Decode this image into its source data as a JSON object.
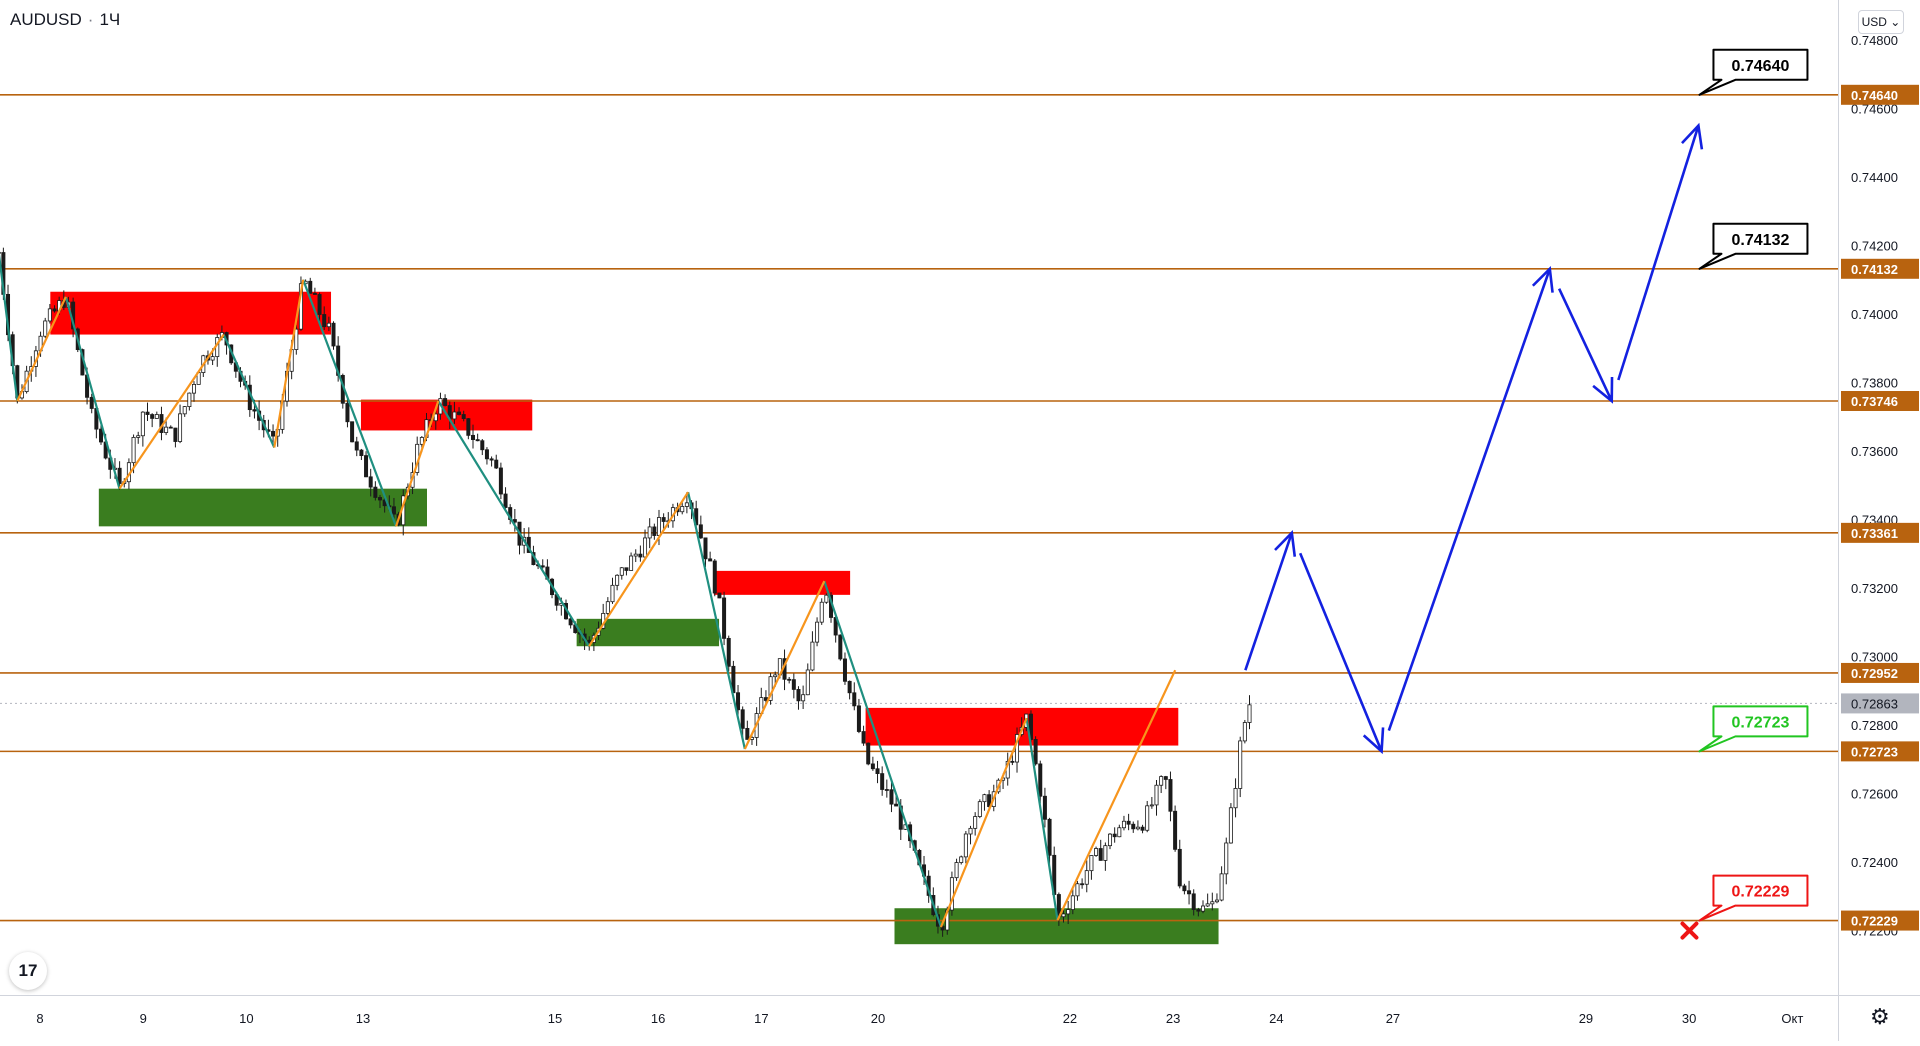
{
  "header": {
    "symbol": "AUDUSD",
    "interval": "1Ч",
    "dot": "·"
  },
  "currency_button": {
    "label": "USD ⌄"
  },
  "logo": {
    "text": "17"
  },
  "settings_icon": "gear-icon",
  "colors": {
    "level_line": "#b8630f",
    "level_label_bg": "#b8630f",
    "zone_red": "#ff0000",
    "zone_green": "#3a7d1f",
    "zigzag_down": "#1f8f80",
    "zigzag_up": "#f7951d",
    "forecast": "#1321e0",
    "candle": "#1b1b1b",
    "current_price_bg": "#b2b5be",
    "callout_green": "#21c521",
    "callout_red": "#ee1515"
  },
  "chart_data": {
    "type": "candlestick",
    "title": "AUDUSD",
    "interval": "1Ч",
    "y_axis": {
      "range": [
        0.72,
        0.7485
      ],
      "ticks": [
        "0.74800",
        "0.74600",
        "0.74400",
        "0.74200",
        "0.74000",
        "0.73800",
        "0.73600",
        "0.73400",
        "0.73200",
        "0.73000",
        "0.72800",
        "0.72600",
        "0.72400",
        "0.72200"
      ]
    },
    "x_axis": {
      "ticks": [
        {
          "label": "8",
          "t": 0.4
        },
        {
          "label": "9",
          "t": 1.4
        },
        {
          "label": "10",
          "t": 2.4
        },
        {
          "label": "13",
          "t": 3.53
        },
        {
          "label": "15",
          "t": 5.39
        },
        {
          "label": "16",
          "t": 6.39
        },
        {
          "label": "17",
          "t": 7.39
        },
        {
          "label": "20",
          "t": 8.52
        },
        {
          "label": "22",
          "t": 10.38
        },
        {
          "label": "23",
          "t": 11.38
        },
        {
          "label": "24",
          "t": 12.38
        },
        {
          "label": "27",
          "t": 13.51
        },
        {
          "label": "29",
          "t": 15.38
        },
        {
          "label": "30",
          "t": 16.38
        },
        {
          "label": "Окт",
          "t": 17.38
        }
      ]
    },
    "levels": [
      {
        "value": 0.7464,
        "label": "0.74640",
        "callout": "0.74640",
        "callout_style": "black"
      },
      {
        "value": 0.74132,
        "label": "0.74132",
        "callout": "0.74132",
        "callout_style": "black"
      },
      {
        "value": 0.73746,
        "label": "0.73746"
      },
      {
        "value": 0.73361,
        "label": "0.73361"
      },
      {
        "value": 0.72952,
        "label": "0.72952"
      },
      {
        "value": 0.72723,
        "label": "0.72723",
        "callout": "0.72723",
        "callout_style": "green"
      },
      {
        "value": 0.72229,
        "label": "0.72229",
        "callout": "0.72229",
        "callout_style": "red"
      }
    ],
    "current_price": {
      "value": 0.72863,
      "label": "0.72863"
    },
    "zones": [
      {
        "kind": "supply",
        "t_from": 0.5,
        "t_to": 3.22,
        "y_from": 0.7394,
        "y_to": 0.74065
      },
      {
        "kind": "demand",
        "t_from": 0.97,
        "t_to": 4.15,
        "y_from": 0.7338,
        "y_to": 0.7349
      },
      {
        "kind": "supply",
        "t_from": 3.51,
        "t_to": 5.17,
        "y_from": 0.7366,
        "y_to": 0.7375
      },
      {
        "kind": "demand",
        "t_from": 5.6,
        "t_to": 6.98,
        "y_from": 0.7303,
        "y_to": 0.7311
      },
      {
        "kind": "supply",
        "t_from": 6.93,
        "t_to": 8.25,
        "y_from": 0.7318,
        "y_to": 0.7325
      },
      {
        "kind": "supply",
        "t_from": 8.4,
        "t_to": 11.43,
        "y_from": 0.7274,
        "y_to": 0.7285
      },
      {
        "kind": "demand",
        "t_from": 8.68,
        "t_to": 11.82,
        "y_from": 0.7216,
        "y_to": 0.72265
      }
    ],
    "zigzag_down": [
      [
        [
          0.0,
          0.7418
        ],
        [
          0.18,
          0.73746
        ]
      ],
      [
        [
          0.65,
          0.7405
        ],
        [
          1.17,
          0.7349
        ]
      ],
      [
        [
          2.18,
          0.7394
        ],
        [
          2.67,
          0.7361
        ]
      ],
      [
        [
          2.95,
          0.741
        ],
        [
          3.85,
          0.7338
        ]
      ],
      [
        [
          4.26,
          0.73746
        ],
        [
          5.72,
          0.7303
        ]
      ],
      [
        [
          6.68,
          0.7348
        ],
        [
          7.23,
          0.7273
        ]
      ],
      [
        [
          8.0,
          0.7322
        ],
        [
          9.13,
          0.7221
        ]
      ],
      [
        [
          9.96,
          0.7282
        ],
        [
          10.26,
          0.7223
        ]
      ]
    ],
    "zigzag_up": [
      [
        [
          0.18,
          0.73746
        ],
        [
          0.65,
          0.7405
        ]
      ],
      [
        [
          1.17,
          0.7349
        ],
        [
          2.18,
          0.7394
        ]
      ],
      [
        [
          2.67,
          0.7361
        ],
        [
          2.95,
          0.741
        ]
      ],
      [
        [
          3.85,
          0.7338
        ],
        [
          4.26,
          0.73746
        ]
      ],
      [
        [
          5.72,
          0.7303
        ],
        [
          6.68,
          0.7348
        ]
      ],
      [
        [
          7.23,
          0.7273
        ],
        [
          8.0,
          0.7322
        ]
      ],
      [
        [
          9.13,
          0.7221
        ],
        [
          9.96,
          0.7282
        ]
      ],
      [
        [
          10.26,
          0.7223
        ],
        [
          11.4,
          0.7296
        ]
      ]
    ],
    "forecast_path": [
      [
        12.08,
        0.7296
      ],
      [
        12.53,
        0.73361
      ],
      [
        13.4,
        0.72723
      ],
      [
        15.03,
        0.74132
      ],
      [
        15.63,
        0.73746
      ],
      [
        16.47,
        0.7455
      ]
    ],
    "forecast_targets_marker": "red-x-icon",
    "price_path": [
      [
        0.0,
        0.7418
      ],
      [
        0.18,
        0.73746
      ],
      [
        0.4,
        0.7395
      ],
      [
        0.65,
        0.7405
      ],
      [
        0.9,
        0.737
      ],
      [
        1.17,
        0.7349
      ],
      [
        1.4,
        0.7372
      ],
      [
        1.7,
        0.7364
      ],
      [
        1.95,
        0.7386
      ],
      [
        2.18,
        0.7394
      ],
      [
        2.4,
        0.7376
      ],
      [
        2.67,
        0.7361
      ],
      [
        2.8,
        0.7383
      ],
      [
        2.95,
        0.741
      ],
      [
        3.2,
        0.7395
      ],
      [
        3.45,
        0.736
      ],
      [
        3.85,
        0.7338
      ],
      [
        4.05,
        0.736
      ],
      [
        4.26,
        0.73746
      ],
      [
        4.55,
        0.7366
      ],
      [
        4.8,
        0.7356
      ],
      [
        5.05,
        0.7334
      ],
      [
        5.35,
        0.732
      ],
      [
        5.72,
        0.7303
      ],
      [
        6.0,
        0.7323
      ],
      [
        6.3,
        0.7335
      ],
      [
        6.68,
        0.7348
      ],
      [
        6.95,
        0.732
      ],
      [
        7.23,
        0.7273
      ],
      [
        7.55,
        0.7298
      ],
      [
        7.78,
        0.7285
      ],
      [
        8.0,
        0.7322
      ],
      [
        8.2,
        0.7295
      ],
      [
        8.4,
        0.727
      ],
      [
        8.7,
        0.7255
      ],
      [
        9.13,
        0.7221
      ],
      [
        9.4,
        0.7252
      ],
      [
        9.7,
        0.7262
      ],
      [
        9.96,
        0.7282
      ],
      [
        10.1,
        0.726
      ],
      [
        10.26,
        0.7223
      ],
      [
        10.55,
        0.7238
      ],
      [
        10.85,
        0.725
      ],
      [
        11.1,
        0.7252
      ],
      [
        11.3,
        0.7265
      ],
      [
        11.45,
        0.7234
      ],
      [
        11.65,
        0.7226
      ],
      [
        11.78,
        0.7228
      ],
      [
        11.9,
        0.7245
      ],
      [
        12.05,
        0.7278
      ],
      [
        12.12,
        0.72863
      ]
    ]
  }
}
